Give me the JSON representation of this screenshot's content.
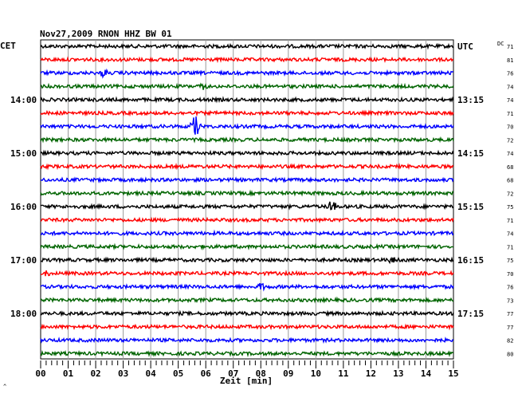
{
  "header": {
    "title": "Nov27,2009   RNON HHZ BW 01",
    "left_tz": "CET",
    "right_tz": "UTC",
    "dc_label": "DC",
    "corner_mark": "^"
  },
  "chart_data": {
    "type": "line",
    "title": "Nov27,2009   RNON HHZ BW 01",
    "xlabel": "Zeit [min]",
    "ylabel": "",
    "xlim": [
      0,
      15
    ],
    "x_ticks": [
      "00",
      "01",
      "02",
      "03",
      "04",
      "05",
      "06",
      "07",
      "08",
      "09",
      "10",
      "11",
      "12",
      "13",
      "14",
      "15"
    ],
    "grid": true,
    "trace_count": 24,
    "trace_colors": [
      "#000000",
      "#ff0000",
      "#0000ff",
      "#006400"
    ],
    "left_hour_labels": [
      {
        "trace": 4,
        "label": "14:00"
      },
      {
        "trace": 8,
        "label": "15:00"
      },
      {
        "trace": 12,
        "label": "16:00"
      },
      {
        "trace": 16,
        "label": "17:00"
      },
      {
        "trace": 20,
        "label": "18:00"
      }
    ],
    "right_time_labels": [
      {
        "trace": 0,
        "label": "UTC"
      },
      {
        "trace": 4,
        "label": "13:15"
      },
      {
        "trace": 8,
        "label": "14:15"
      },
      {
        "trace": 12,
        "label": "15:15"
      },
      {
        "trace": 16,
        "label": "16:15"
      },
      {
        "trace": 20,
        "label": "17:15"
      }
    ],
    "dc_offsets": [
      "71",
      "81",
      "76",
      "74",
      "74",
      "71",
      "70",
      "72",
      "74",
      "68",
      "68",
      "72",
      "75",
      "71",
      "74",
      "71",
      "75",
      "70",
      "76",
      "73",
      "77",
      "77",
      "82",
      "80"
    ],
    "events": [
      {
        "trace": 2,
        "minute": 2.3,
        "amplitude": 0.6
      },
      {
        "trace": 3,
        "minute": 5.9,
        "amplitude": 0.5
      },
      {
        "trace": 6,
        "minute": 5.6,
        "amplitude": 1.8
      },
      {
        "trace": 12,
        "minute": 10.6,
        "amplitude": 1.0
      },
      {
        "trace": 16,
        "minute": 12.8,
        "amplitude": 0.5
      },
      {
        "trace": 17,
        "minute": 0.2,
        "amplitude": 0.6
      },
      {
        "trace": 18,
        "minute": 8.0,
        "amplitude": 0.5
      }
    ]
  }
}
